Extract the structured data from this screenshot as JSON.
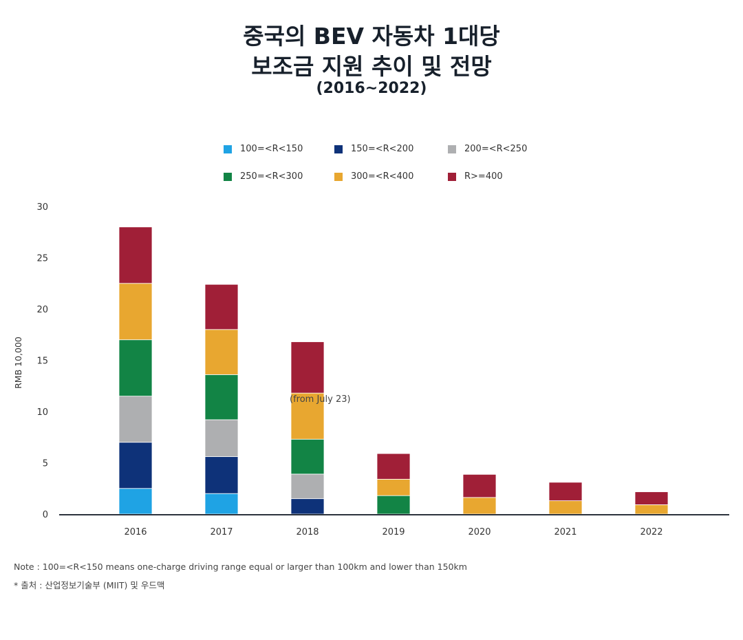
{
  "title": {
    "line1": "중국의 BEV 자동차 1대당",
    "line2": "보조금 지원 추이 및 전망",
    "line3": "(2016~2022)"
  },
  "chart_data": {
    "type": "bar",
    "stacked": true,
    "categories": [
      "2016",
      "2017",
      "2018",
      "2019",
      "2020",
      "2021",
      "2022"
    ],
    "ylabel": "RMB 10,000",
    "ylim": [
      0,
      30
    ],
    "yticks": [
      "0",
      "5",
      "10",
      "15",
      "20",
      "25",
      "30"
    ],
    "grid": false,
    "legend_position": "top",
    "series": [
      {
        "name": "100=<R<150",
        "color": "#1fa3e4",
        "values": [
          2.5,
          2.0,
          0,
          0,
          0,
          0,
          0
        ]
      },
      {
        "name": "150=<R<200",
        "color": "#0e3279",
        "values": [
          4.5,
          3.6,
          1.5,
          0,
          0,
          0,
          0
        ]
      },
      {
        "name": "200=<R<250",
        "color": "#aeafb1",
        "values": [
          4.5,
          3.6,
          2.4,
          0,
          0,
          0,
          0
        ]
      },
      {
        "name": "250=<R<300",
        "color": "#128445",
        "values": [
          5.5,
          4.4,
          3.4,
          1.8,
          0,
          0,
          0
        ]
      },
      {
        "name": "300=<R<400",
        "color": "#e8a730",
        "values": [
          5.5,
          4.4,
          4.5,
          1.6,
          1.62,
          1.3,
          0.91
        ]
      },
      {
        "name": "R>=400",
        "color": "#a01f37",
        "values": [
          5.5,
          4.4,
          5.0,
          2.5,
          2.25,
          1.8,
          1.26
        ]
      }
    ],
    "annotation": "(from July 23)"
  },
  "notes": {
    "note": "Note : 100=<R<150 means one-charge driving range equal or larger than 100km and lower than 150km",
    "source": "* 출처 : 산업정보기술부 (MIIT) 및 우드맥"
  }
}
